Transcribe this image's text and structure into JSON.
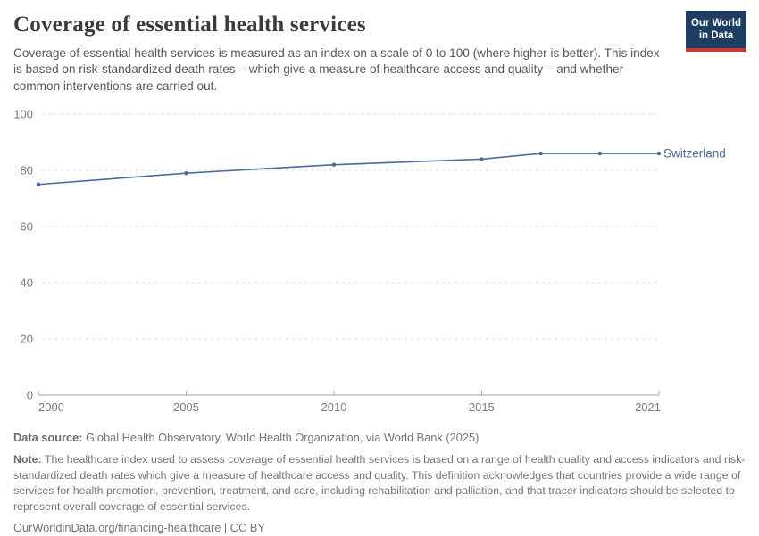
{
  "header": {
    "title": "Coverage of essential health services",
    "subtitle": "Coverage of essential health services is measured as an index on a scale of 0 to 100 (where higher is better). This index is based on risk-standardized death rates – which give a measure of healthcare access and quality – and whether common interventions are carried out.",
    "logo": {
      "line1": "Our World",
      "line2": "in Data"
    }
  },
  "chart_data": {
    "type": "line",
    "title": "Coverage of essential health services",
    "x": [
      2000,
      2005,
      2010,
      2015,
      2017,
      2019,
      2021
    ],
    "series": [
      {
        "name": "Switzerland",
        "values": [
          75,
          79,
          82,
          84,
          86,
          86,
          86
        ],
        "color": "#4c6a9c"
      }
    ],
    "xlabel": "",
    "ylabel": "",
    "xlim": [
      2000,
      2021
    ],
    "ylim": [
      0,
      100
    ],
    "x_ticks": [
      2000,
      2005,
      2010,
      2015,
      2021
    ],
    "y_ticks": [
      0,
      20,
      40,
      60,
      80,
      100
    ],
    "grid": "horizontal-dashed",
    "legend_position": "end-of-line-label",
    "colors": {
      "grid": "#dedede",
      "axis": "#a3a3a3",
      "tick_label": "#7a7a7a",
      "line": "#4c6a9c"
    }
  },
  "footer": {
    "data_source_label": "Data source:",
    "data_source_text": "Global Health Observatory, World Health Organization, via World Bank (2025)",
    "note_label": "Note:",
    "note_text": "The healthcare index used to assess coverage of essential health services is based on a range of health quality and access indicators and risk-standardized death rates which give a measure of healthcare access and quality. This definition acknowledges that countries provide a wide range of services for health promotion, prevention, treatment, and care, including rehabilitation and palliation, and that tracer indicators should be selected to represent overall coverage of essential services.",
    "attribution": "OurWorldinData.org/financing-healthcare | CC BY"
  }
}
